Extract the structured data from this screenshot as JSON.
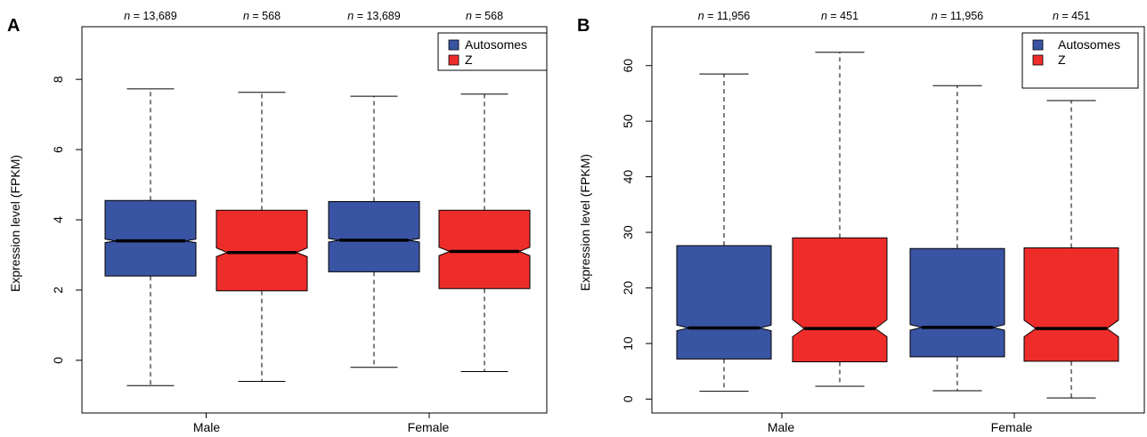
{
  "chart_data": [
    {
      "panel_label": "A",
      "type": "box",
      "ylabel": "Expression level (FPKM)",
      "ylim": [
        -1.5,
        9.5
      ],
      "yticks": [
        "0",
        "2",
        "4",
        "6",
        "8"
      ],
      "ytick_values": [
        0,
        2,
        4,
        6,
        8
      ],
      "groups": [
        "Male",
        "Female"
      ],
      "legend": {
        "position": "top-right",
        "items": [
          {
            "label": "Autosomes",
            "color": "#3a54a4"
          },
          {
            "label": "Z",
            "color": "#ee2d2b"
          }
        ]
      },
      "boxes": [
        {
          "group": "Male",
          "series": "Autosomes",
          "n_label": "= 13,689",
          "whisker_low": -0.72,
          "q1": 2.4,
          "median": 3.4,
          "notch_low": 3.35,
          "notch_high": 3.45,
          "q3": 4.55,
          "whisker_high": 7.73
        },
        {
          "group": "Male",
          "series": "Z",
          "n_label": "= 568",
          "whisker_low": -0.6,
          "q1": 1.98,
          "median": 3.07,
          "notch_low": 2.95,
          "notch_high": 3.2,
          "q3": 4.27,
          "whisker_high": 7.63
        },
        {
          "group": "Female",
          "series": "Autosomes",
          "n_label": "= 13,689",
          "whisker_low": -0.2,
          "q1": 2.52,
          "median": 3.42,
          "notch_low": 3.37,
          "notch_high": 3.47,
          "q3": 4.52,
          "whisker_high": 7.52
        },
        {
          "group": "Female",
          "series": "Z",
          "n_label": "= 568",
          "whisker_low": -0.32,
          "q1": 2.04,
          "median": 3.1,
          "notch_low": 2.98,
          "notch_high": 3.22,
          "q3": 4.27,
          "whisker_high": 7.58
        }
      ]
    },
    {
      "panel_label": "B",
      "type": "box",
      "ylabel": "Expression level (FPKM)",
      "ylim": [
        -2.5,
        67
      ],
      "yticks": [
        "0",
        "10",
        "20",
        "30",
        "40",
        "50",
        "60"
      ],
      "ytick_values": [
        0,
        10,
        20,
        30,
        40,
        50,
        60
      ],
      "groups": [
        "Male",
        "Female"
      ],
      "legend": {
        "position": "top-right",
        "items": [
          {
            "label": "Autosomes",
            "color": "#3a54a4"
          },
          {
            "label": "Z",
            "color": "#ee2d2b"
          }
        ]
      },
      "boxes": [
        {
          "group": "Male",
          "series": "Autosomes",
          "n_label": "= 11,956",
          "whisker_low": 1.4,
          "q1": 7.2,
          "median": 12.8,
          "notch_low": 12.3,
          "notch_high": 13.3,
          "q3": 27.6,
          "whisker_high": 58.5
        },
        {
          "group": "Male",
          "series": "Z",
          "n_label": "= 451",
          "whisker_low": 2.3,
          "q1": 6.7,
          "median": 12.7,
          "notch_low": 11.2,
          "notch_high": 14.3,
          "q3": 29.0,
          "whisker_high": 62.4
        },
        {
          "group": "Female",
          "series": "Autosomes",
          "n_label": "= 11,956",
          "whisker_low": 1.5,
          "q1": 7.6,
          "median": 12.9,
          "notch_low": 12.4,
          "notch_high": 13.4,
          "q3": 27.1,
          "whisker_high": 56.4
        },
        {
          "group": "Female",
          "series": "Z",
          "n_label": "= 451",
          "whisker_low": 0.2,
          "q1": 6.8,
          "median": 12.7,
          "notch_low": 11.2,
          "notch_high": 14.2,
          "q3": 27.2,
          "whisker_high": 53.7
        }
      ]
    }
  ]
}
